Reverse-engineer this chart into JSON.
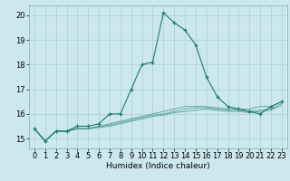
{
  "title": "",
  "xlabel": "Humidex (Indice chaleur)",
  "ylabel": "",
  "background_color": "#cce8ee",
  "grid_color": "#aacdd6",
  "line_color": "#1a7a6e",
  "x_data": [
    0,
    1,
    2,
    3,
    4,
    5,
    6,
    7,
    8,
    9,
    10,
    11,
    12,
    13,
    14,
    15,
    16,
    17,
    18,
    19,
    20,
    21,
    22,
    23
  ],
  "y_main": [
    15.4,
    14.9,
    15.3,
    15.3,
    15.5,
    15.5,
    15.6,
    16.0,
    16.0,
    17.0,
    18.0,
    18.1,
    20.1,
    19.7,
    19.4,
    18.8,
    17.5,
    16.7,
    16.3,
    16.2,
    16.1,
    16.0,
    16.3,
    16.5
  ],
  "y_line2": [
    15.4,
    14.9,
    15.3,
    15.3,
    15.4,
    15.4,
    15.5,
    15.6,
    15.7,
    15.8,
    15.9,
    16.0,
    16.1,
    16.2,
    16.3,
    16.3,
    16.3,
    16.25,
    16.2,
    16.2,
    16.2,
    16.3,
    16.3,
    16.5
  ],
  "y_line3": [
    15.4,
    14.9,
    15.3,
    15.3,
    15.4,
    15.4,
    15.48,
    15.55,
    15.65,
    15.75,
    15.85,
    15.95,
    16.0,
    16.1,
    16.2,
    16.25,
    16.25,
    16.2,
    16.15,
    16.15,
    16.1,
    16.15,
    16.2,
    16.42
  ],
  "y_line4": [
    15.4,
    14.9,
    15.3,
    15.3,
    15.4,
    15.4,
    15.45,
    15.5,
    15.6,
    15.7,
    15.8,
    15.9,
    15.95,
    16.05,
    16.1,
    16.15,
    16.2,
    16.15,
    16.1,
    16.1,
    16.05,
    16.1,
    16.15,
    16.35
  ],
  "xlim": [
    -0.5,
    23.5
  ],
  "ylim": [
    14.6,
    20.4
  ],
  "yticks": [
    15,
    16,
    17,
    18,
    19,
    20
  ],
  "xticks": [
    0,
    1,
    2,
    3,
    4,
    5,
    6,
    7,
    8,
    9,
    10,
    11,
    12,
    13,
    14,
    15,
    16,
    17,
    18,
    19,
    20,
    21,
    22,
    23
  ],
  "axis_fontsize": 6.5,
  "tick_fontsize": 6.0
}
